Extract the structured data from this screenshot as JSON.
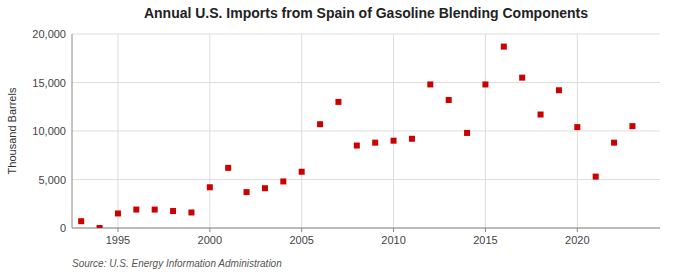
{
  "chart_data": {
    "type": "scatter",
    "title": "Annual U.S. Imports from Spain of Gasoline Blending Components",
    "y_label": "Thousand Barrels",
    "annotations": [
      "Source: U.S. Energy Information Administration"
    ],
    "x": [
      1993,
      1994,
      1995,
      1996,
      1997,
      1998,
      1999,
      2000,
      2001,
      2002,
      2003,
      2004,
      2005,
      2006,
      2007,
      2008,
      2009,
      2010,
      2011,
      2012,
      2013,
      2014,
      2015,
      2016,
      2017,
      2018,
      2019,
      2020,
      2021,
      2022,
      2023
    ],
    "values": [
      700,
      0,
      1500,
      1900,
      1900,
      1750,
      1600,
      4200,
      6200,
      3700,
      4100,
      4800,
      5800,
      10700,
      13000,
      8500,
      8800,
      9000,
      9200,
      14800,
      13200,
      9800,
      14800,
      18700,
      15500,
      11700,
      14200,
      10400,
      5300,
      8800,
      10500
    ],
    "color": "#cc0000",
    "marker": "square",
    "xlim": [
      1992.5,
      2024.5
    ],
    "ylim": [
      0,
      20000
    ],
    "xticks": [
      1995,
      2000,
      2005,
      2010,
      2015,
      2020
    ],
    "yticks": [
      0,
      {
        "value": 5000,
        "label": "5,000"
      },
      {
        "value": 10000,
        "label": "10,000"
      },
      {
        "value": 15000,
        "label": "15,000"
      },
      {
        "value": 20000,
        "label": "20,000"
      }
    ],
    "grid": true
  }
}
